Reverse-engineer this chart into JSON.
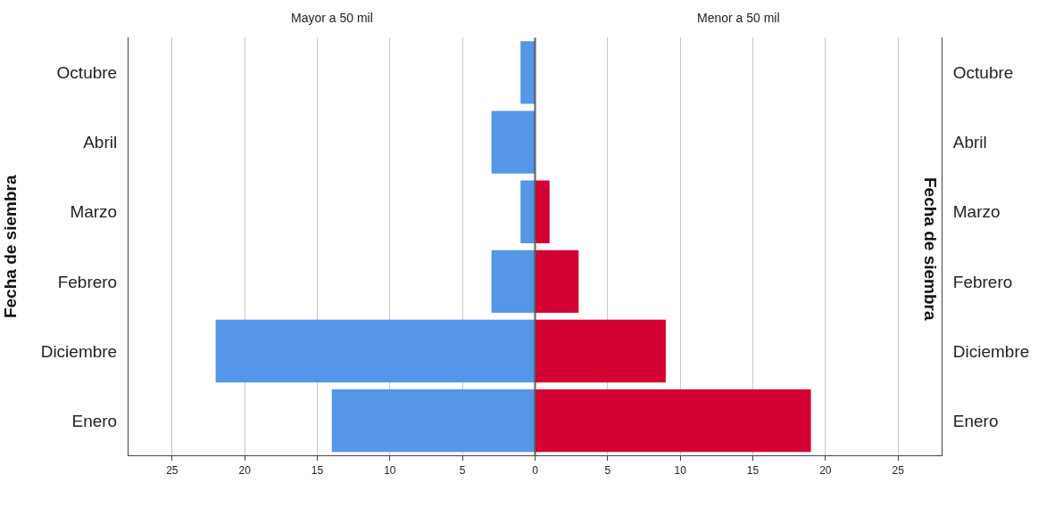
{
  "chart_data": [
    {
      "type": "bar",
      "orientation": "horizontal",
      "title": "Mayor a 50 mil",
      "ylabel": "Fecha de siembra",
      "categories": [
        "Octubre",
        "Abril",
        "Marzo",
        "Febrero",
        "Diciembre",
        "Enero"
      ],
      "series": [
        {
          "color": "#5596e6",
          "values": [
            1,
            3,
            1,
            3,
            22,
            14
          ]
        }
      ],
      "xlim": [
        28,
        0
      ],
      "xticks": [
        25,
        20,
        15,
        10,
        5,
        {
          "value": 0,
          "label": null
        }
      ],
      "grid": "x"
    },
    {
      "type": "bar",
      "orientation": "horizontal",
      "title": "Menor a 50 mil",
      "ylabel": "Fecha de siembra",
      "categories": [
        "Octubre",
        "Abril",
        "Marzo",
        "Febrero",
        "Diciembre",
        "Enero"
      ],
      "series": [
        {
          "color": "#d50032",
          "values": [
            0,
            0,
            1,
            3,
            9,
            19
          ]
        }
      ],
      "xlim": [
        0,
        28
      ],
      "xticks": [
        0,
        5,
        10,
        15,
        20,
        25
      ],
      "grid": "x"
    }
  ]
}
